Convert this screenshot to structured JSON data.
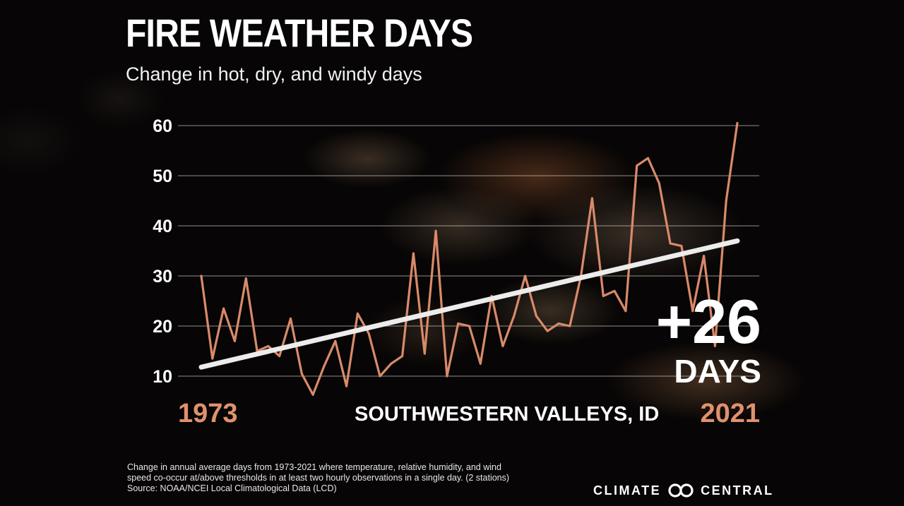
{
  "header": {
    "title": "FIRE WEATHER DAYS",
    "subtitle": "Change in hot, dry, and windy days"
  },
  "chart_data": {
    "type": "line",
    "title": "FIRE WEATHER DAYS",
    "subtitle": "Change in hot, dry, and windy days",
    "location": "SOUTHWESTERN VALLEYS, ID",
    "x": [
      1973,
      1974,
      1975,
      1976,
      1977,
      1978,
      1979,
      1980,
      1981,
      1982,
      1983,
      1984,
      1985,
      1986,
      1987,
      1988,
      1989,
      1990,
      1991,
      1992,
      1993,
      1994,
      1995,
      1996,
      1997,
      1998,
      1999,
      2000,
      2001,
      2002,
      2003,
      2004,
      2005,
      2006,
      2007,
      2008,
      2009,
      2010,
      2011,
      2012,
      2013,
      2014,
      2015,
      2016,
      2017,
      2018,
      2019,
      2020,
      2021
    ],
    "series": [
      {
        "name": "Fire weather days",
        "color": "#d98a6a",
        "values": [
          30,
          13.5,
          23.5,
          17,
          29.5,
          15,
          16,
          14,
          21.5,
          10.5,
          6.3,
          12,
          17,
          8,
          22.5,
          18.5,
          10,
          12.5,
          14,
          34.5,
          14.5,
          39,
          10,
          20.5,
          20,
          12.5,
          26,
          16,
          22,
          30,
          22,
          19,
          20.5,
          20,
          30,
          45.5,
          26,
          27,
          23,
          52,
          53.5,
          48.5,
          36.5,
          36,
          23,
          34,
          16,
          45,
          60.5
        ]
      }
    ],
    "trend": {
      "name": "Trend",
      "color": "#ececec",
      "start": [
        1973,
        11.8
      ],
      "end": [
        2021,
        37
      ]
    },
    "ylim": [
      10,
      60
    ],
    "yticks": [
      10,
      20,
      30,
      40,
      50,
      60
    ],
    "xlabel_start": "1973",
    "xlabel_end": "2021",
    "annotation": {
      "value": "+26",
      "unit": "DAYS"
    },
    "grid": true
  },
  "footnote": {
    "line1": "Change in annual average days from 1973-2021 where temperature, relative humidity, and wind",
    "line2": "speed co-occur at/above thresholds in at least two hourly observations in a single day. (2 stations)",
    "line3": "Source: NOAA/NCEI Local Climatological Data (LCD)"
  },
  "brand": {
    "left": "CLIMATE",
    "right": "CENTRAL",
    "logo_icon": "linked-rings-icon"
  }
}
